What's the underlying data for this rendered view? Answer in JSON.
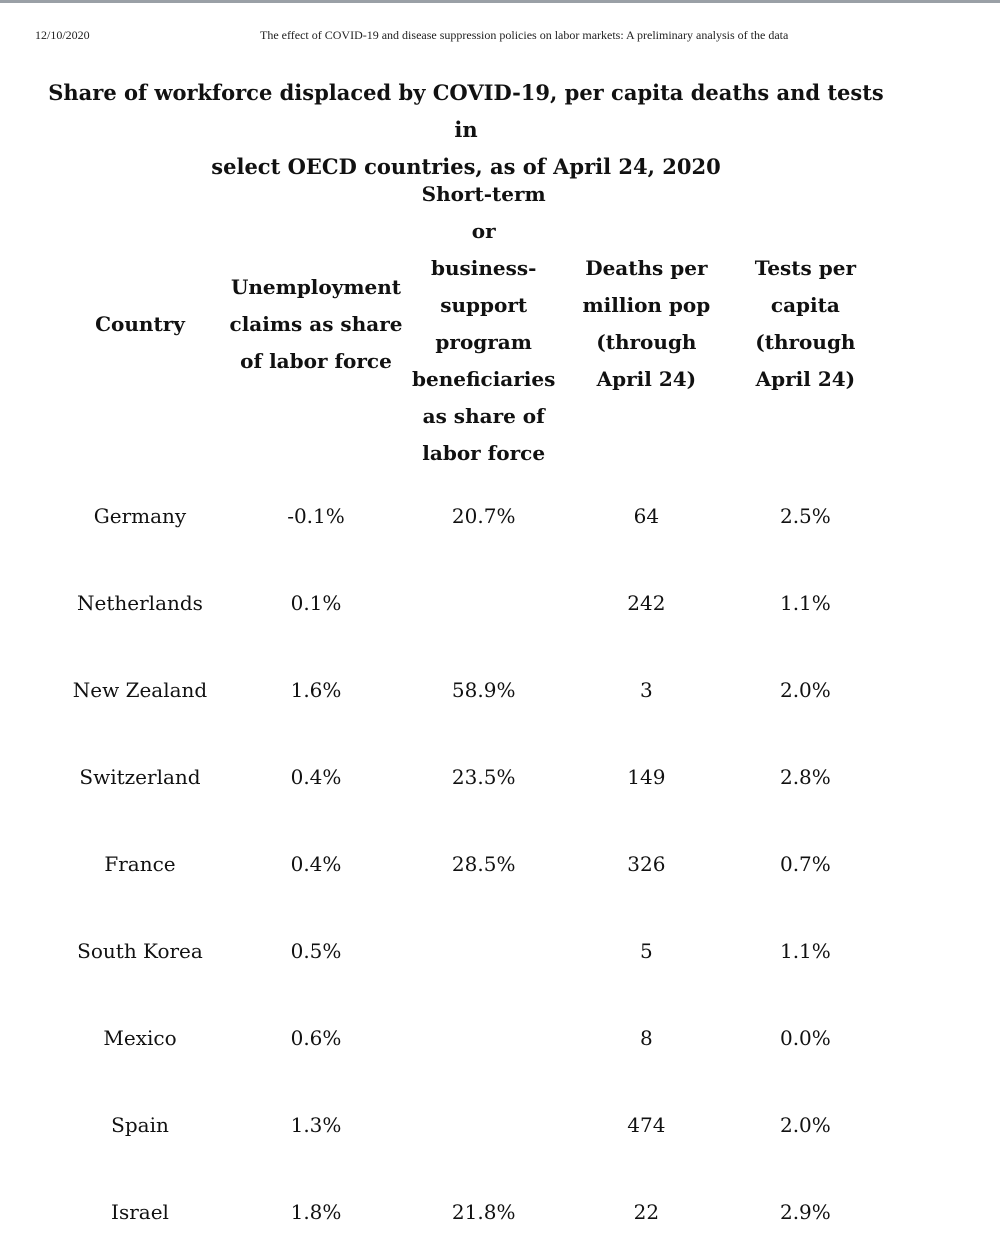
{
  "print_header": {
    "date": "12/10/2020",
    "document_title": "The effect of COVID-19 and disease suppression policies on labor markets: A preliminary analysis of the data"
  },
  "title_line1": "Share of workforce displaced by COVID-19, per capita deaths and tests in",
  "title_line2": "select OECD countries, as of April 24, 2020",
  "columns": [
    {
      "lines": [
        "Country"
      ]
    },
    {
      "lines": [
        "Unemployment",
        "claims as share",
        "of labor force"
      ]
    },
    {
      "lines": [
        "Short-term or",
        "business-",
        "support",
        "program",
        "beneficiaries",
        "as share of",
        "labor force"
      ]
    },
    {
      "lines": [
        "Deaths per",
        "million pop",
        "(through",
        "April 24)"
      ]
    },
    {
      "lines": [
        "Tests per",
        "capita",
        "(through",
        "April 24)"
      ]
    }
  ],
  "rows": [
    {
      "country": "Germany",
      "unemployment": "-0.1%",
      "short_term": "20.7%",
      "deaths": "64",
      "tests": "2.5%"
    },
    {
      "country": "Netherlands",
      "unemployment": "0.1%",
      "short_term": "",
      "deaths": "242",
      "tests": "1.1%"
    },
    {
      "country": "New Zealand",
      "unemployment": "1.6%",
      "short_term": "58.9%",
      "deaths": "3",
      "tests": "2.0%"
    },
    {
      "country": "Switzerland",
      "unemployment": "0.4%",
      "short_term": "23.5%",
      "deaths": "149",
      "tests": "2.8%"
    },
    {
      "country": "France",
      "unemployment": "0.4%",
      "short_term": "28.5%",
      "deaths": "326",
      "tests": "0.7%"
    },
    {
      "country": "South Korea",
      "unemployment": "0.5%",
      "short_term": "",
      "deaths": "5",
      "tests": "1.1%"
    },
    {
      "country": "Mexico",
      "unemployment": "0.6%",
      "short_term": "",
      "deaths": "8",
      "tests": "0.0%"
    },
    {
      "country": "Spain",
      "unemployment": "1.3%",
      "short_term": "",
      "deaths": "474",
      "tests": "2.0%"
    },
    {
      "country": "Israel",
      "unemployment": "1.8%",
      "short_term": "21.8%",
      "deaths": "22",
      "tests": "2.9%"
    }
  ]
}
